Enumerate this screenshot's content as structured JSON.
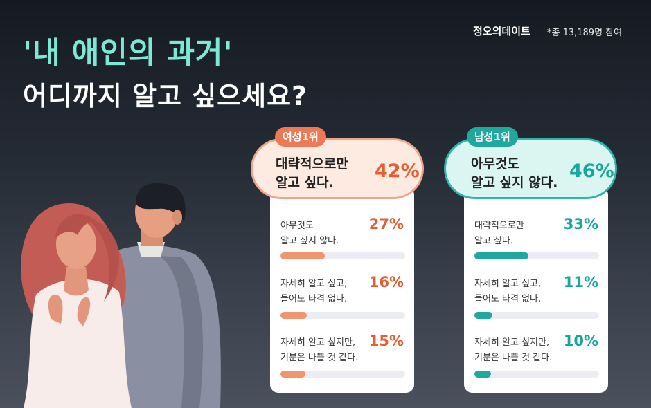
{
  "header": {
    "title_line1": "'내 애인의 과거'",
    "title_line2": "어디까지 알고 싶으세요?",
    "brand": "정오의데이트",
    "participants": "*총 13,189명 참여"
  },
  "colors": {
    "female_accent": "#e65d2f",
    "male_accent": "#17a79c",
    "title_accent": "#7ee8d6"
  },
  "chart_data": [
    {
      "type": "bar",
      "series_name": "",
      "top_badge": "여성1위",
      "categories": [
        "대략적으로만\n알고 싶다.",
        "아무것도\n알고 싶지 않다.",
        "자세히 알고 싶고,\n들어도 타격 없다.",
        "자세히 알고 싶지만,\n기분은 나쁠 것 같다."
      ],
      "values": [
        42,
        27,
        16,
        15
      ],
      "value_labels": [
        "42%",
        "27%",
        "16%",
        "15%"
      ],
      "ylim": [
        0,
        100
      ]
    },
    {
      "type": "bar",
      "series_name": "",
      "top_badge": "남성1위",
      "categories": [
        "아무것도\n알고 싶지 않다.",
        "대략적으로만\n알고 싶다.",
        "자세히 알고 싶고,\n들어도 타격 없다.",
        "자세히 알고 싶지만,\n기분은 나쁠 것 같다."
      ],
      "values": [
        46,
        33,
        11,
        10
      ],
      "value_labels": [
        "46%",
        "33%",
        "11%",
        "10%"
      ],
      "ylim": [
        0,
        100
      ]
    }
  ]
}
